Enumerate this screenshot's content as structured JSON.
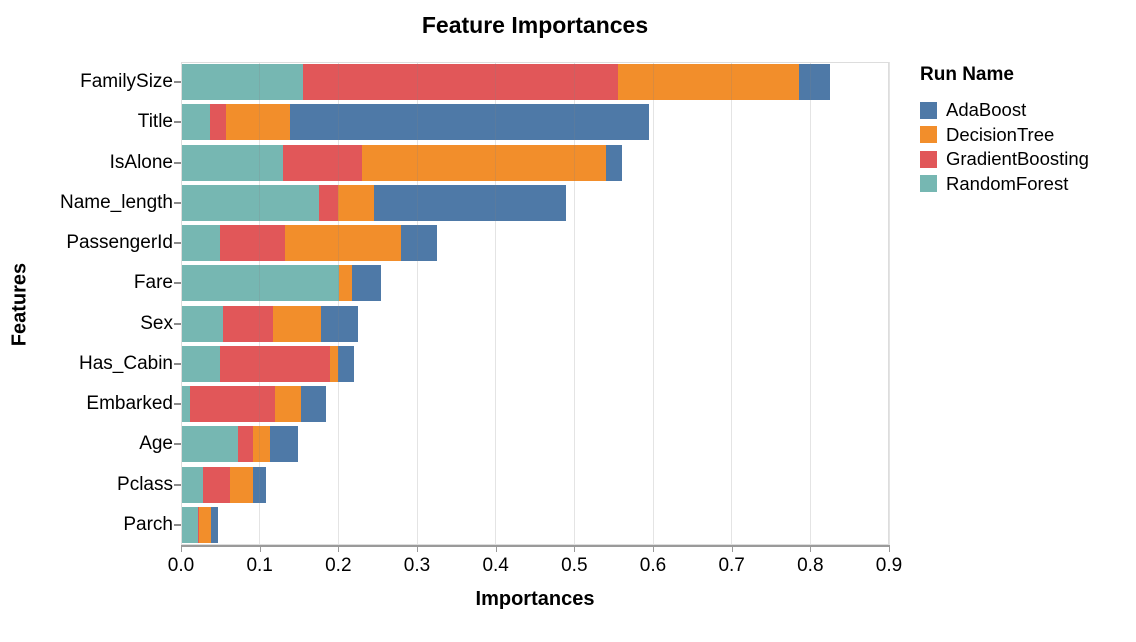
{
  "chart_data": {
    "type": "bar",
    "orientation": "horizontal",
    "stacked": true,
    "title": "Feature Importances",
    "xlabel": "Importances",
    "ylabel": "Features",
    "xlim": [
      0,
      0.9
    ],
    "x_ticks": [
      "0.0",
      "0.1",
      "0.2",
      "0.3",
      "0.4",
      "0.5",
      "0.6",
      "0.7",
      "0.8",
      "0.9"
    ],
    "grid": true,
    "categories": [
      "FamilySize",
      "Title",
      "IsAlone",
      "Name_length",
      "PassengerId",
      "Fare",
      "Sex",
      "Has_Cabin",
      "Embarked",
      "Age",
      "Pclass",
      "Parch"
    ],
    "series": [
      {
        "name": "AdaBoost",
        "color": "#4e79a7",
        "values": [
          0.04,
          0.456,
          0.02,
          0.245,
          0.045,
          0.037,
          0.047,
          0.02,
          0.031,
          0.036,
          0.016,
          0.009
        ]
      },
      {
        "name": "DecisionTree",
        "color": "#f28e2b",
        "values": [
          0.23,
          0.082,
          0.31,
          0.046,
          0.148,
          0.016,
          0.061,
          0.01,
          0.034,
          0.021,
          0.03,
          0.015
        ]
      },
      {
        "name": "GradientBoosting",
        "color": "#e15759",
        "values": [
          0.4,
          0.02,
          0.1,
          0.024,
          0.082,
          0.0,
          0.064,
          0.14,
          0.108,
          0.02,
          0.034,
          0.002
        ]
      },
      {
        "name": "RandomForest",
        "color": "#76b7b2",
        "values": [
          0.155,
          0.037,
          0.13,
          0.175,
          0.05,
          0.201,
          0.053,
          0.05,
          0.011,
          0.072,
          0.028,
          0.021
        ]
      }
    ],
    "stack_order_left_to_right": [
      "RandomForest",
      "GradientBoosting",
      "DecisionTree",
      "AdaBoost"
    ],
    "legend": {
      "title": "Run Name",
      "position": "right",
      "entries": [
        "AdaBoost",
        "DecisionTree",
        "GradientBoosting",
        "RandomForest"
      ]
    }
  }
}
